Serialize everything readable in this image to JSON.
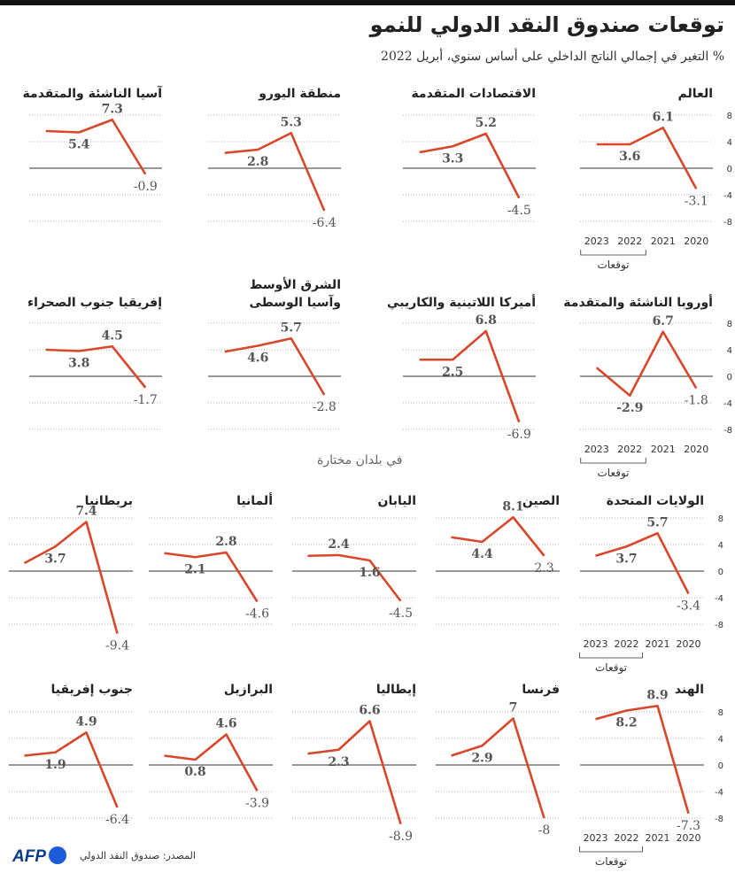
{
  "header": {
    "title": "توقعات صندوق النقد الدولي للنمو",
    "subtitle": "% التغير في إجمالي الناتج الداخلي على أساس سنوي، أبريل 2022"
  },
  "section_label": "في بلدان مختارة",
  "footer": {
    "source": "المصدر: صندوق النقد الدولي",
    "logo_text": "AFP"
  },
  "axis": {
    "years": [
      "2020",
      "2021",
      "2022",
      "2023"
    ],
    "forecast_label": "توقعات",
    "ticks": [
      "8",
      "4",
      "0",
      "-4",
      "-8"
    ]
  },
  "colors": {
    "line": "#d9472b",
    "axis": "#333333",
    "grid": "#999999",
    "label": "#555555"
  },
  "chart_data": [
    {
      "type": "line",
      "title": "العالم",
      "x": [
        "2020",
        "2021",
        "2022",
        "2023"
      ],
      "values": [
        -3.1,
        6.1,
        3.6,
        3.6
      ],
      "labels": [
        "-3.1",
        "6.1",
        "3.6",
        ""
      ],
      "ylim": [
        -8,
        8
      ]
    },
    {
      "type": "line",
      "title": "الاقتصادات المتقدمة",
      "x": [
        "2020",
        "2021",
        "2022",
        "2023"
      ],
      "values": [
        -4.5,
        5.2,
        3.3,
        2.4
      ],
      "labels": [
        "-4.5",
        "5.2",
        "3.3",
        ""
      ],
      "ylim": [
        -8,
        8
      ]
    },
    {
      "type": "line",
      "title": "منطقة اليورو",
      "x": [
        "2020",
        "2021",
        "2022",
        "2023"
      ],
      "values": [
        -6.4,
        5.3,
        2.8,
        2.3
      ],
      "labels": [
        "-6.4",
        "5.3",
        "2.8",
        ""
      ],
      "ylim": [
        -8,
        8
      ]
    },
    {
      "type": "line",
      "title": "آسيا الناشئة والمتقدمة",
      "x": [
        "2020",
        "2021",
        "2022",
        "2023"
      ],
      "values": [
        -0.9,
        7.3,
        5.4,
        5.6
      ],
      "labels": [
        "-0.9",
        "7.3",
        "5.4",
        ""
      ],
      "ylim": [
        -8,
        8
      ]
    },
    {
      "type": "line",
      "title": "أوروبا الناشئة والمتقدمة",
      "x": [
        "2020",
        "2021",
        "2022",
        "2023"
      ],
      "values": [
        -1.8,
        6.7,
        -2.9,
        1.3
      ],
      "labels": [
        "-1.8",
        "6.7",
        "-2.9",
        ""
      ],
      "ylim": [
        -8,
        8
      ]
    },
    {
      "type": "line",
      "title": "أميركا اللاتينية والكاريبي",
      "x": [
        "2020",
        "2021",
        "2022",
        "2023"
      ],
      "values": [
        -6.9,
        6.8,
        2.5,
        2.5
      ],
      "labels": [
        "-6.9",
        "6.8",
        "2.5",
        ""
      ],
      "ylim": [
        -8,
        8
      ]
    },
    {
      "type": "line",
      "title": [
        "الشرق الأوسط",
        "وآسيا الوسطى"
      ],
      "x": [
        "2020",
        "2021",
        "2022",
        "2023"
      ],
      "values": [
        -2.8,
        5.7,
        4.6,
        3.7
      ],
      "labels": [
        "-2.8",
        "5.7",
        "4.6",
        ""
      ],
      "ylim": [
        -8,
        8
      ]
    },
    {
      "type": "line",
      "title": "إفريقيا جنوب الصحراء",
      "x": [
        "2020",
        "2021",
        "2022",
        "2023"
      ],
      "values": [
        -1.7,
        4.5,
        3.8,
        4.0
      ],
      "labels": [
        "-1.7",
        "4.5",
        "3.8",
        ""
      ],
      "ylim": [
        -8,
        8
      ]
    },
    {
      "type": "line",
      "title": "الولايات المتحدة",
      "x": [
        "2020",
        "2021",
        "2022",
        "2023"
      ],
      "values": [
        -3.4,
        5.7,
        3.7,
        2.3
      ],
      "labels": [
        "-3.4",
        "5.7",
        "3.7",
        ""
      ],
      "ylim": [
        -8,
        8
      ]
    },
    {
      "type": "line",
      "title": "الصين",
      "x": [
        "2020",
        "2021",
        "2022",
        "2023"
      ],
      "values": [
        2.3,
        8.1,
        4.4,
        5.1
      ],
      "labels": [
        "2.3",
        "8.1",
        "4.4",
        ""
      ],
      "ylim": [
        -8,
        8
      ]
    },
    {
      "type": "line",
      "title": "اليابان",
      "x": [
        "2020",
        "2021",
        "2022",
        "2023"
      ],
      "values": [
        -4.5,
        1.6,
        2.4,
        2.3
      ],
      "labels": [
        "-4.5",
        "1.6",
        "2.4",
        ""
      ],
      "ylim": [
        -8,
        8
      ]
    },
    {
      "type": "line",
      "title": "ألمانيا",
      "x": [
        "2020",
        "2021",
        "2022",
        "2023"
      ],
      "values": [
        -4.6,
        2.8,
        2.1,
        2.7
      ],
      "labels": [
        "-4.6",
        "2.8",
        "2.1",
        ""
      ],
      "ylim": [
        -8,
        8
      ]
    },
    {
      "type": "line",
      "title": "بريطانيا",
      "x": [
        "2020",
        "2021",
        "2022",
        "2023"
      ],
      "values": [
        -9.4,
        7.4,
        3.7,
        1.2
      ],
      "labels": [
        "-9.4",
        "7.4",
        "3.7",
        ""
      ],
      "ylim": [
        -8,
        8
      ]
    },
    {
      "type": "line",
      "title": "الهند",
      "x": [
        "2020",
        "2021",
        "2022",
        "2023"
      ],
      "values": [
        -7.3,
        8.9,
        8.2,
        6.9
      ],
      "labels": [
        "-7.3",
        "8.9",
        "8.2",
        ""
      ],
      "ylim": [
        -8,
        8
      ]
    },
    {
      "type": "line",
      "title": "فرنسا",
      "x": [
        "2020",
        "2021",
        "2022",
        "2023"
      ],
      "values": [
        -8.0,
        7.0,
        2.9,
        1.4
      ],
      "labels": [
        "-8",
        "7",
        "2.9",
        ""
      ],
      "ylim": [
        -8,
        8
      ]
    },
    {
      "type": "line",
      "title": "إيطاليا",
      "x": [
        "2020",
        "2021",
        "2022",
        "2023"
      ],
      "values": [
        -8.9,
        6.6,
        2.3,
        1.7
      ],
      "labels": [
        "-8.9",
        "6.6",
        "2.3",
        ""
      ],
      "ylim": [
        -8,
        8
      ]
    },
    {
      "type": "line",
      "title": "البرازيل",
      "x": [
        "2020",
        "2021",
        "2022",
        "2023"
      ],
      "values": [
        -3.9,
        4.6,
        0.8,
        1.4
      ],
      "labels": [
        "-3.9",
        "4.6",
        "0.8",
        ""
      ],
      "ylim": [
        -8,
        8
      ]
    },
    {
      "type": "line",
      "title": "جنوب إفريقيا",
      "x": [
        "2020",
        "2021",
        "2022",
        "2023"
      ],
      "values": [
        -6.4,
        4.9,
        1.9,
        1.4
      ],
      "labels": [
        "-6.4",
        "4.9",
        "1.9",
        ""
      ],
      "ylim": [
        -8,
        8
      ]
    }
  ]
}
